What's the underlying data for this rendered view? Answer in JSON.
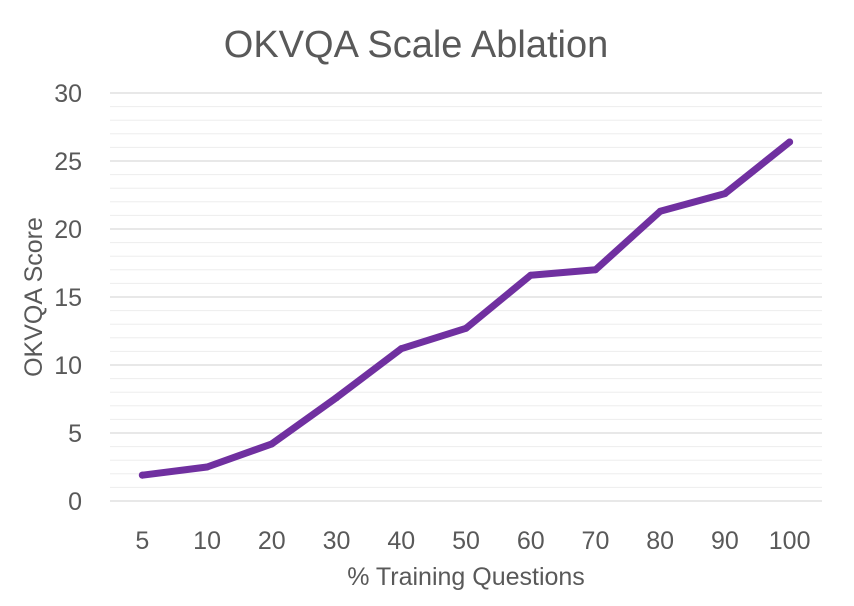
{
  "chart_data": {
    "type": "line",
    "title": "OKVQA Scale Ablation",
    "xlabel": "% Training Questions",
    "ylabel": "OKVQA Score",
    "categories": [
      "5",
      "10",
      "20",
      "30",
      "40",
      "50",
      "60",
      "70",
      "80",
      "90",
      "100"
    ],
    "series": [
      {
        "values": [
          1.9,
          2.5,
          4.2,
          7.6,
          11.2,
          12.7,
          16.6,
          17.0,
          21.3,
          22.6,
          26.4
        ],
        "color": "#7030a0"
      }
    ],
    "ylim": [
      0,
      30
    ],
    "yticks": [
      0,
      5,
      10,
      15,
      20,
      25,
      30
    ],
    "y_minor_step": 1,
    "grid": true,
    "legend": "none"
  }
}
